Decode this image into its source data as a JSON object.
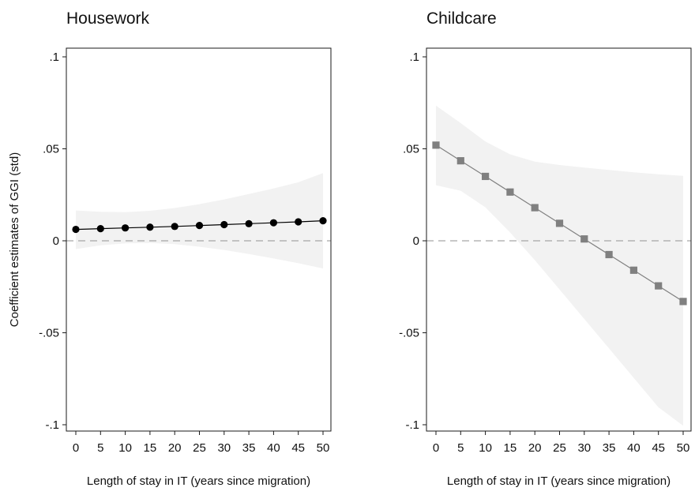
{
  "chart_data": [
    {
      "type": "line",
      "title": "Housework",
      "xlabel": "Length of stay in IT (years since migration)",
      "ylabel": "Coefficient estimates of GGI (std)",
      "x": [
        0,
        5,
        10,
        15,
        20,
        25,
        30,
        35,
        40,
        45,
        50
      ],
      "x_tick_labels": [
        "0",
        "5",
        "10",
        "15",
        "20",
        "25",
        "30",
        "35",
        "40",
        "45",
        "50"
      ],
      "ylim": [
        -0.1,
        0.1
      ],
      "y_ticks": [
        -0.1,
        -0.05,
        0,
        0.05,
        0.1
      ],
      "y_tick_labels": [
        "-.1",
        "-.05",
        "0",
        ".05",
        ".1"
      ],
      "reference_line": 0,
      "marker": "circle",
      "series_color": "#000000",
      "band_color": "#f2f2f2",
      "series": [
        {
          "values": [
            0.0062,
            0.0066,
            0.007,
            0.0074,
            0.0078,
            0.0083,
            0.0088,
            0.0093,
            0.0098,
            0.0103,
            0.0109
          ],
          "ci_upper": [
            0.0165,
            0.0158,
            0.0156,
            0.0163,
            0.0178,
            0.0199,
            0.0225,
            0.0254,
            0.0284,
            0.0318,
            0.0368
          ],
          "ci_lower": [
            -0.0045,
            -0.0025,
            -0.0014,
            -0.0012,
            -0.0018,
            -0.0032,
            -0.005,
            -0.0072,
            -0.0096,
            -0.0122,
            -0.015
          ]
        }
      ]
    },
    {
      "type": "line",
      "title": "Childcare",
      "xlabel": "Length of stay in IT (years since migration)",
      "ylabel": "",
      "x": [
        0,
        5,
        10,
        15,
        20,
        25,
        30,
        35,
        40,
        45,
        50
      ],
      "x_tick_labels": [
        "0",
        "5",
        "10",
        "15",
        "20",
        "25",
        "30",
        "35",
        "40",
        "45",
        "50"
      ],
      "ylim": [
        -0.1,
        0.1
      ],
      "y_ticks": [
        -0.1,
        -0.05,
        0,
        0.05,
        0.1
      ],
      "y_tick_labels": [
        "-.1",
        "-.05",
        "0",
        ".05",
        ".1"
      ],
      "reference_line": 0,
      "marker": "square",
      "series_color": "#808080",
      "band_color": "#f2f2f2",
      "series": [
        {
          "values": [
            0.052,
            0.0435,
            0.035,
            0.0265,
            0.018,
            0.0095,
            0.001,
            -0.0075,
            -0.016,
            -0.0245,
            -0.033
          ],
          "ci_upper": [
            0.0735,
            0.064,
            0.054,
            0.047,
            0.043,
            0.0412,
            0.0398,
            0.0385,
            0.0372,
            0.0362,
            0.0353
          ],
          "ci_lower": [
            0.0302,
            0.0272,
            0.0182,
            0.0045,
            -0.0105,
            -0.0265,
            -0.0425,
            -0.0585,
            -0.0745,
            -0.0905,
            -0.1005
          ]
        }
      ]
    }
  ]
}
